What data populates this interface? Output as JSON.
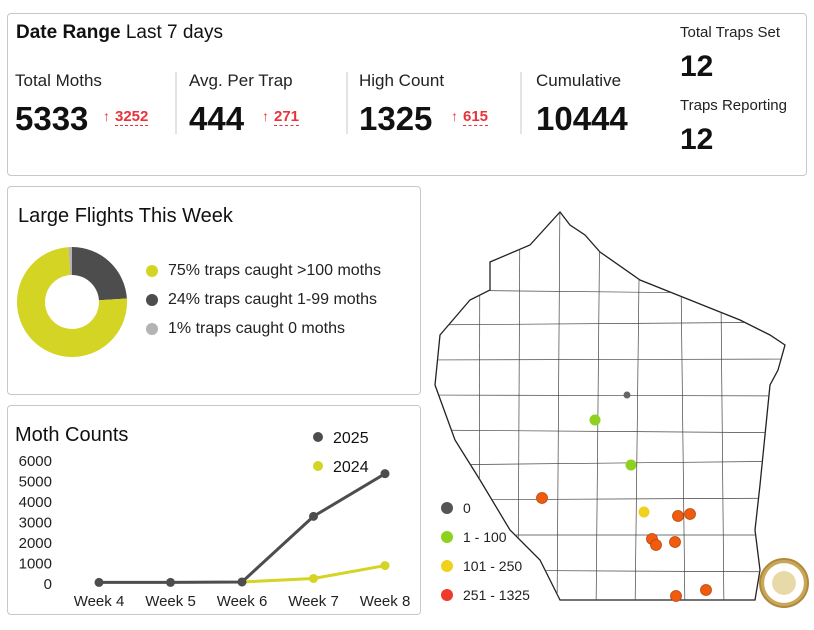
{
  "header": {
    "date_range_label": "Date Range",
    "date_range_value": "Last 7 days"
  },
  "kpis": [
    {
      "label": "Total Moths",
      "value": "5333",
      "delta": "3252",
      "arrow": "↑"
    },
    {
      "label": "Avg. Per Trap",
      "value": "444",
      "delta": "271",
      "arrow": "↑"
    },
    {
      "label": "High Count",
      "value": "1325",
      "delta": "615",
      "arrow": "↑"
    },
    {
      "label": "Cumulative",
      "value": "10444"
    }
  ],
  "traps": {
    "set_label": "Total Traps Set",
    "set_value": "12",
    "reporting_label": "Traps Reporting",
    "reporting_value": "12"
  },
  "flights": {
    "title": "Large Flights This Week",
    "slices": [
      {
        "pct": 24,
        "label": "24% traps caught 1-99 moths",
        "color": "#4d4d4d"
      },
      {
        "pct": 75,
        "label": "75% traps caught >100 moths",
        "color": "#d4d424"
      },
      {
        "pct": 1,
        "label": "1% traps caught 0 moths",
        "color": "#b3b3b3"
      }
    ]
  },
  "chart_data": {
    "type": "line",
    "title": "Moth Counts",
    "categories": [
      "Week 4",
      "Week 5",
      "Week 6",
      "Week 7",
      "Week 8"
    ],
    "ylim": [
      0,
      6000
    ],
    "yticks": [
      "0",
      "1000",
      "2000",
      "3000",
      "4000",
      "5000",
      "6000"
    ],
    "legend_position": "top-right",
    "series": [
      {
        "name": "2025",
        "color": "#4d4d4d",
        "values": [
          30,
          30,
          50,
          3250,
          5333
        ]
      },
      {
        "name": "2024",
        "color": "#d4d424",
        "values": [
          null,
          null,
          50,
          220,
          850
        ]
      }
    ]
  },
  "map": {
    "legend": [
      {
        "label": "0",
        "color": "#555555"
      },
      {
        "label": "1 - 100",
        "color": "#8ed11e"
      },
      {
        "label": "101 - 250",
        "color": "#f0d21e"
      },
      {
        "label": "251 - 1325",
        "color": "#ee3a2a"
      }
    ],
    "traps": [
      {
        "cat": 0
      },
      {
        "cat": 1
      },
      {
        "cat": 1
      },
      {
        "cat": 3
      },
      {
        "cat": 2
      },
      {
        "cat": 3
      },
      {
        "cat": 3
      },
      {
        "cat": 3
      },
      {
        "cat": 3
      },
      {
        "cat": 3
      },
      {
        "cat": 3
      },
      {
        "cat": 3
      }
    ]
  }
}
